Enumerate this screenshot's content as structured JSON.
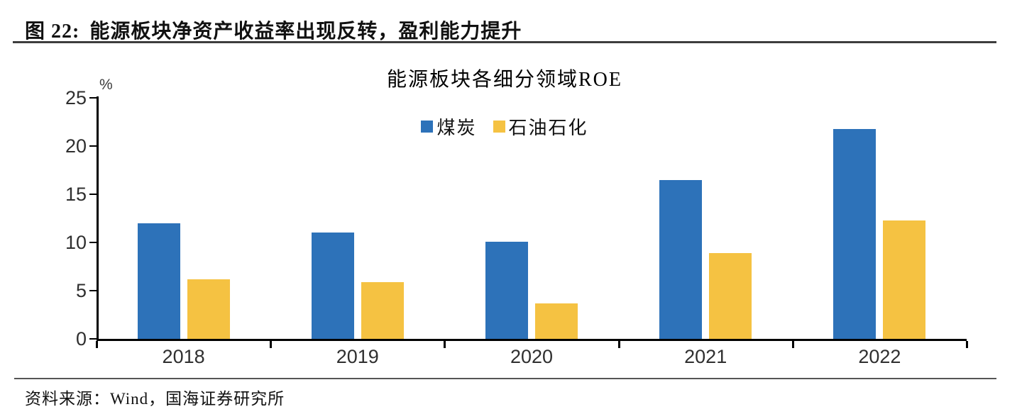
{
  "header": {
    "figure_label": "图 22:",
    "figure_title": "能源板块净资产收益率出现反转，盈利能力提升"
  },
  "footer": {
    "source_label": "资料来源：",
    "source_text": "Wind，国海证券研究所"
  },
  "chart_data": {
    "type": "bar",
    "title": "能源板块各细分领域ROE",
    "unit_label": "%",
    "categories": [
      "2018",
      "2019",
      "2020",
      "2021",
      "2022"
    ],
    "series": [
      {
        "name": "煤炭",
        "color": "#2D72B9",
        "values": [
          12.0,
          11.0,
          10.1,
          16.5,
          21.8
        ]
      },
      {
        "name": "石油石化",
        "color": "#F5C242",
        "values": [
          6.2,
          5.9,
          3.7,
          8.9,
          12.3
        ]
      }
    ],
    "ylim": [
      0,
      25
    ],
    "yticks": [
      0,
      5,
      10,
      15,
      20,
      25
    ],
    "legend_position": "top-center",
    "grid": false
  },
  "colors": {
    "header_rule": "#3d3d3d",
    "footer_rule": "#555555",
    "axis": "#000000"
  }
}
